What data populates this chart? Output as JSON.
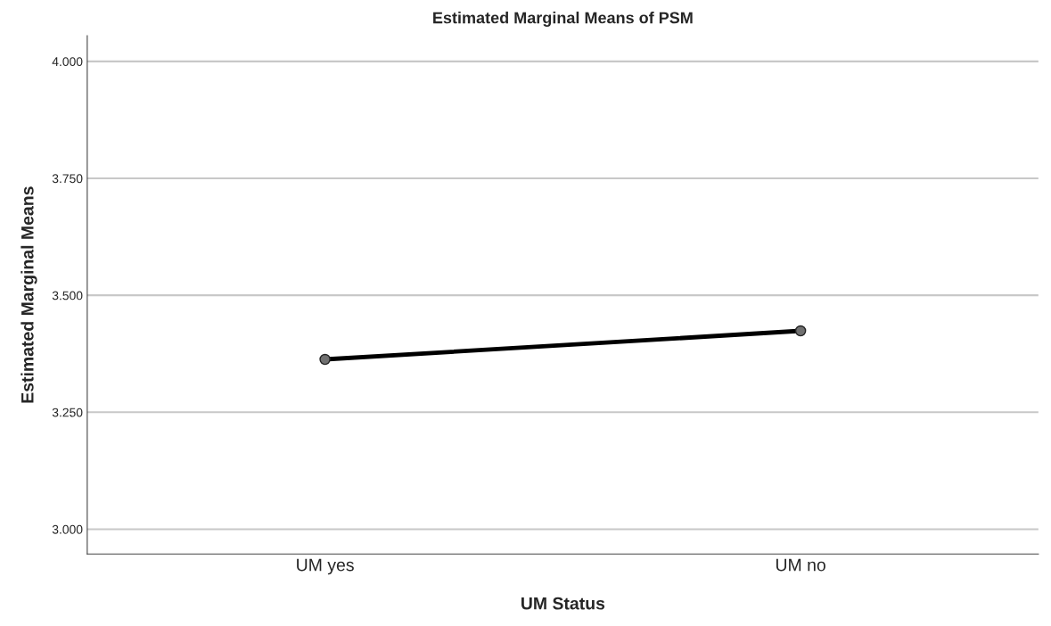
{
  "chart_data": {
    "type": "line",
    "title": "Estimated Marginal Means of PSM",
    "xlabel": "UM Status",
    "ylabel": "Estimated Marginal Means",
    "categories": [
      "UM yes",
      "UM no"
    ],
    "series": [
      {
        "color": "#000000",
        "values": [
          3.363,
          3.424
        ]
      }
    ],
    "ylim": [
      2.947,
      4.055
    ],
    "yticks": [
      {
        "value": 3.0,
        "label": "3.000"
      },
      {
        "value": 3.25,
        "label": "3.250"
      },
      {
        "value": 3.5,
        "label": "3.500"
      },
      {
        "value": 3.75,
        "label": "3.750"
      },
      {
        "value": 4.0,
        "label": "4.000"
      }
    ],
    "grid": "y",
    "marker": "circle",
    "line_style": "solid",
    "legend": false
  }
}
